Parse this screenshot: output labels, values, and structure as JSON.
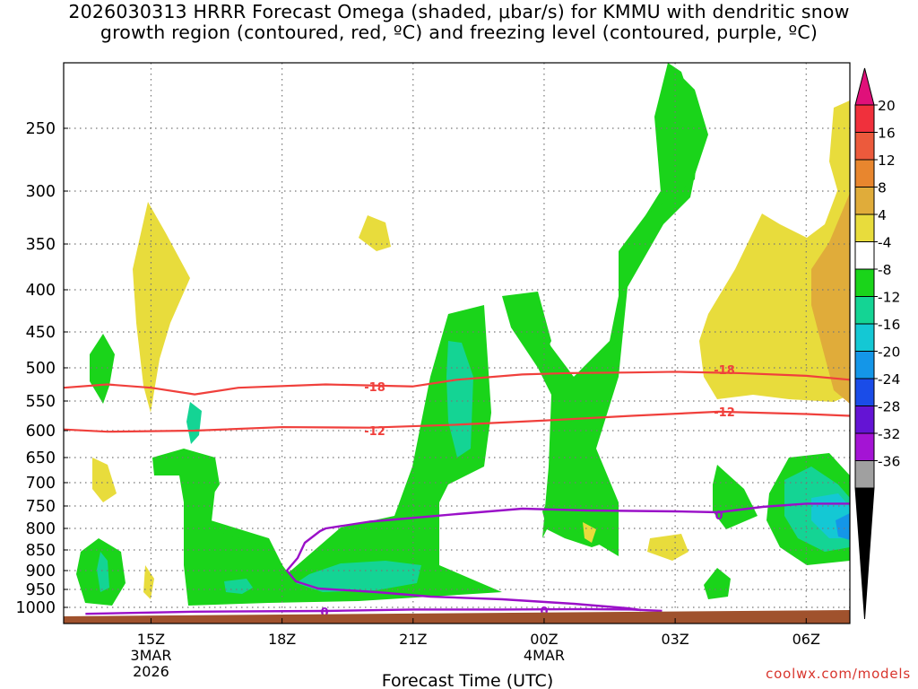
{
  "chart_data": {
    "type": "contour-crosssection",
    "title_line1": "2026030313 HRRR Forecast Omega (shaded, μbar/s) for KMMU with dendritic snow",
    "title_line2": "growth region (contoured, red, ºC) and freezing level (contoured, purple, ºC)",
    "xlabel": "Forecast Time (UTC)",
    "ylabel": "",
    "x_range_hours": [
      13.0,
      7.0
    ],
    "x_ticks": [
      {
        "label": "15Z",
        "sublabel1": "3MAR",
        "sublabel2": "2026"
      },
      {
        "label": "18Z"
      },
      {
        "label": "21Z"
      },
      {
        "label": "00Z",
        "sublabel1": "4MAR"
      },
      {
        "label": "03Z"
      },
      {
        "label": "06Z"
      }
    ],
    "y_ticks": [
      "250",
      "300",
      "350",
      "400",
      "450",
      "500",
      "550",
      "600",
      "650",
      "700",
      "750",
      "800",
      "850",
      "900",
      "950",
      "1000"
    ],
    "y_tick_values": [
      250,
      300,
      350,
      400,
      450,
      500,
      550,
      600,
      650,
      700,
      750,
      800,
      850,
      900,
      950,
      1000
    ],
    "y_range": [
      200,
      1025
    ],
    "grid": true,
    "colorbar_labels": [
      "20",
      "16",
      "12",
      "8",
      "4",
      "-4",
      "-8",
      "-12",
      "-16",
      "-20",
      "-24",
      "-28",
      "-32",
      "-36"
    ],
    "colorbar_colors": [
      "#f0303c",
      "#ec5a3c",
      "#e8862e",
      "#e0ac3a",
      "#e8dc3c",
      "#ffffff",
      "#1ad41a",
      "#14d494",
      "#14c8d4",
      "#1496e8",
      "#1a4ce8",
      "#6414d4",
      "#a414d4",
      "#a0a0a0"
    ],
    "colorbar_top_color": "#e0107a",
    "colorbar_bottom_color": "#000000",
    "contour_labels": {
      "dgz_upper": "-18",
      "dgz_lower": "-12",
      "freezing": "0"
    },
    "dgz_minus18_line": [
      [
        13.0,
        530
      ],
      [
        14.0,
        525
      ],
      [
        15.0,
        530
      ],
      [
        16.0,
        540
      ],
      [
        17.0,
        530
      ],
      [
        19.0,
        525
      ],
      [
        21.0,
        528
      ],
      [
        22.0,
        518
      ],
      [
        23.5,
        510
      ],
      [
        0.5,
        508
      ],
      [
        2.0,
        507
      ],
      [
        3.0,
        506
      ],
      [
        4.5,
        508
      ],
      [
        6.0,
        512
      ],
      [
        7.0,
        518
      ]
    ],
    "dgz_minus12_line": [
      [
        13.0,
        598
      ],
      [
        14.0,
        602
      ],
      [
        16.0,
        600
      ],
      [
        18.0,
        594
      ],
      [
        20.0,
        595
      ],
      [
        22.0,
        590
      ],
      [
        24.0,
        583
      ],
      [
        2.0,
        575
      ],
      [
        4.0,
        568
      ],
      [
        6.0,
        572
      ],
      [
        7.0,
        575
      ]
    ],
    "freezing_line_top": [
      [
        19.0,
        800
      ],
      [
        20.0,
        785
      ],
      [
        22.0,
        768
      ],
      [
        23.5,
        756
      ],
      [
        1.0,
        760
      ],
      [
        3.0,
        762
      ],
      [
        4.0,
        764
      ],
      [
        5.0,
        752
      ],
      [
        6.0,
        745
      ],
      [
        7.0,
        745
      ]
    ],
    "freezing_line_bottom": [
      [
        13.5,
        1018
      ],
      [
        16.0,
        1012
      ],
      [
        19.0,
        1010
      ],
      [
        21.0,
        1006
      ],
      [
        23.0,
        1006
      ],
      [
        1.0,
        1005
      ],
      [
        2.0,
        1006
      ],
      [
        2.7,
        1010
      ]
    ],
    "colors": {
      "dgz": "#f0403c",
      "freezing": "#9a10c8",
      "ground": "#a0522d",
      "grid": "#777777"
    }
  },
  "credit": "coolwx.com/models"
}
